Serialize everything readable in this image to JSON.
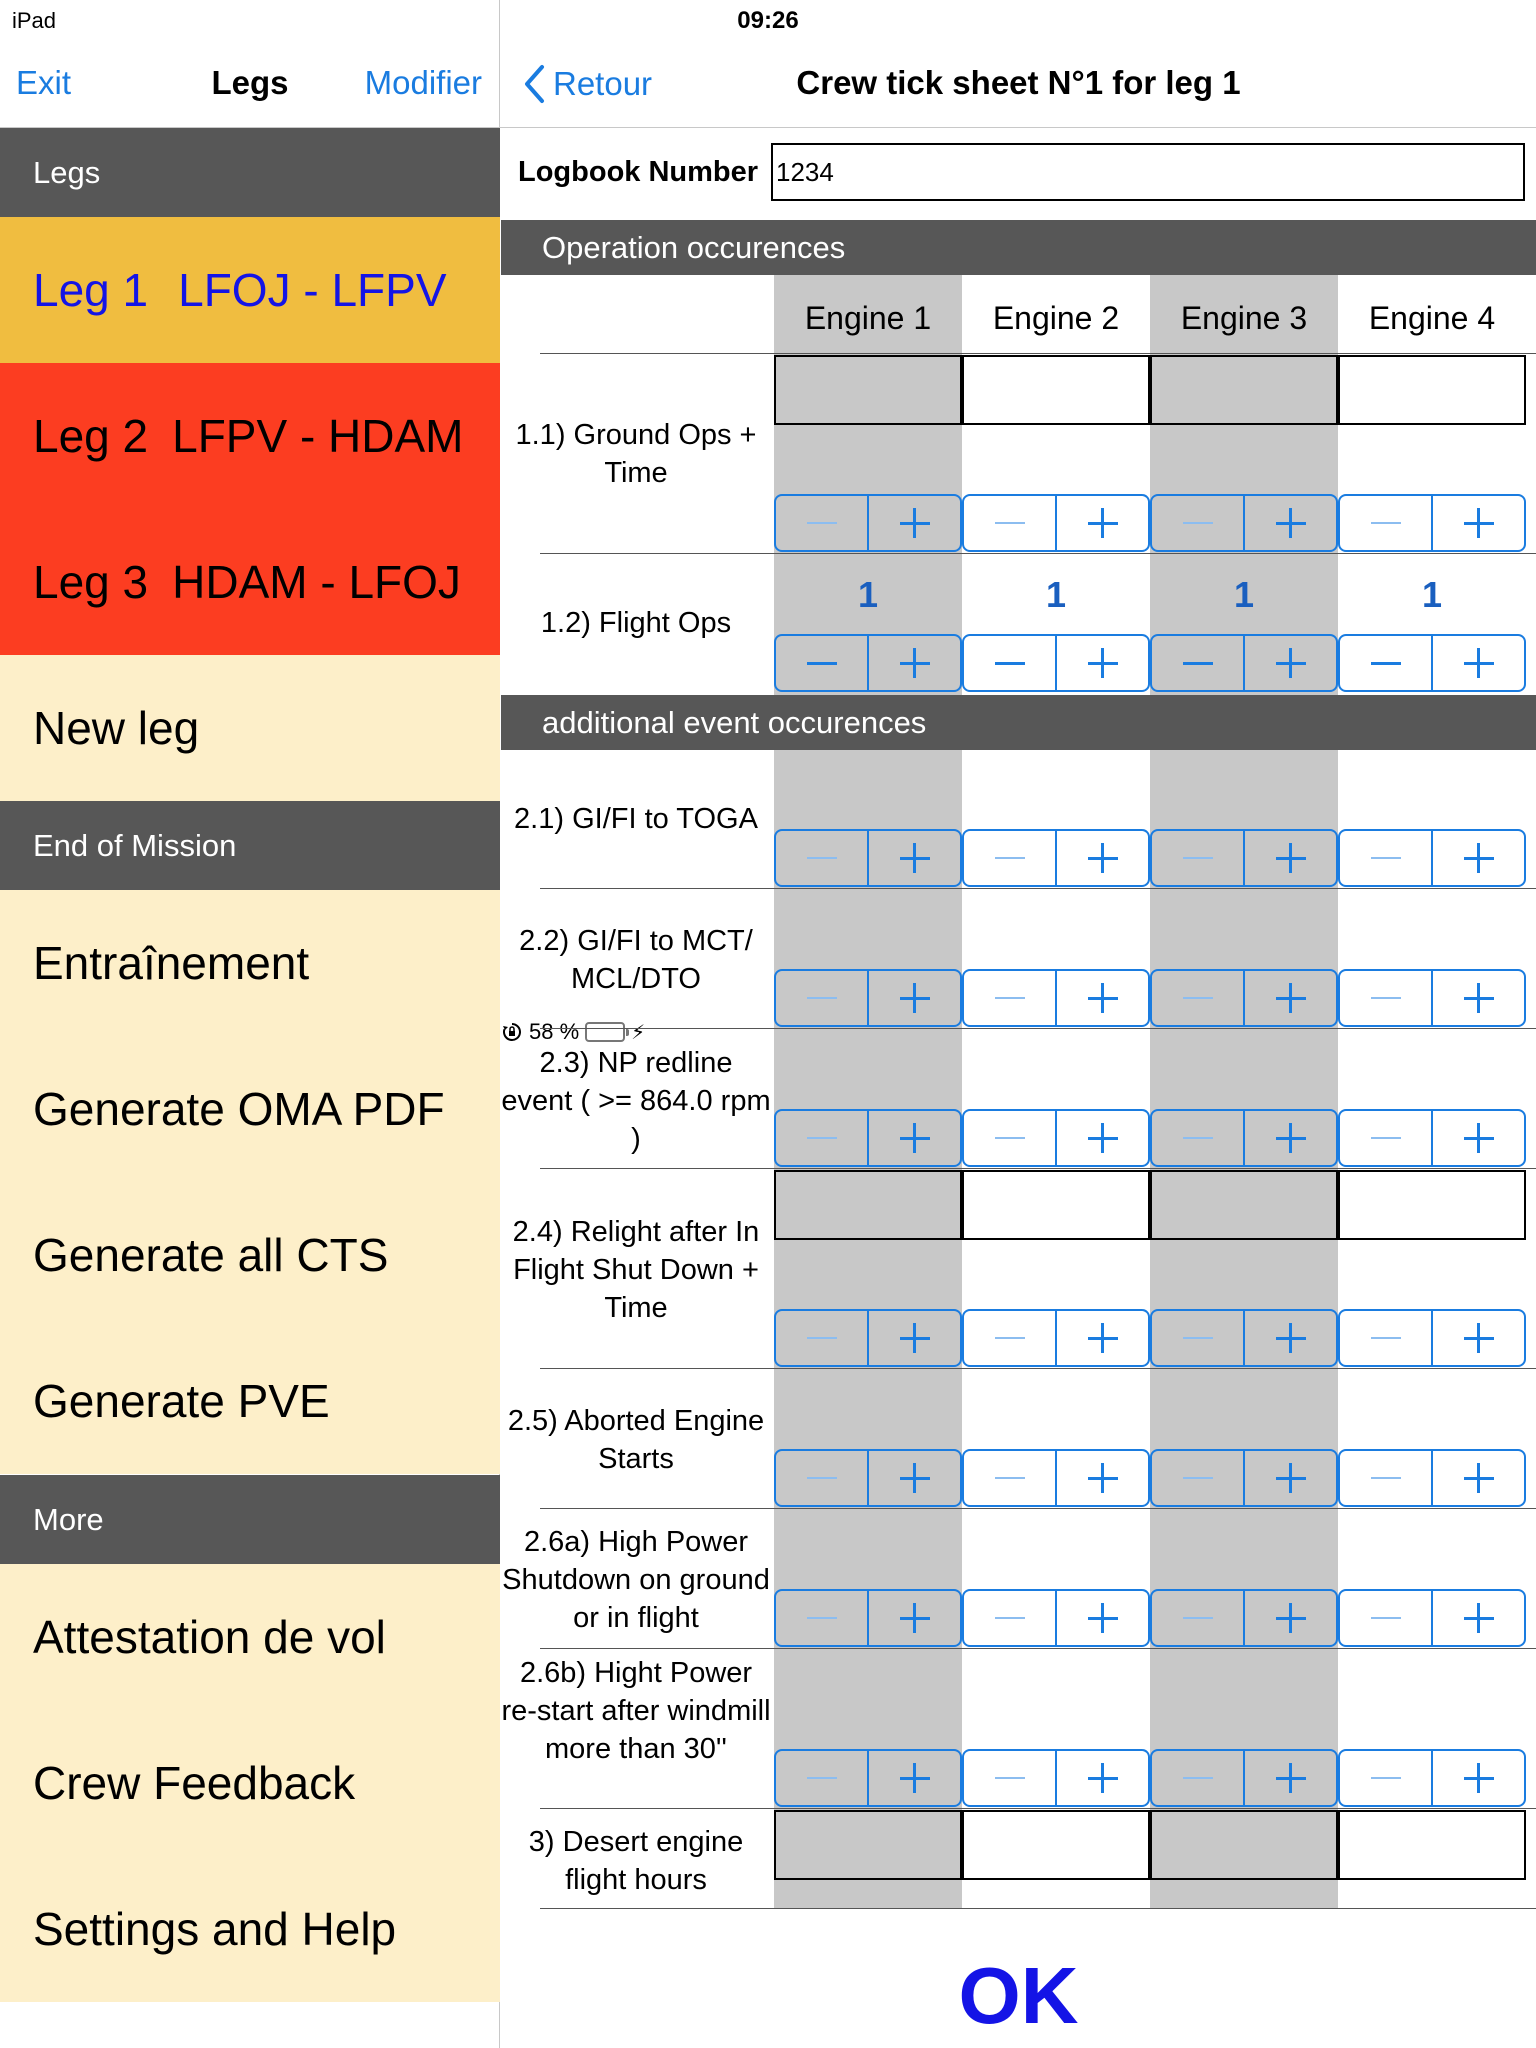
{
  "status": {
    "device": "iPad",
    "time": "09:26",
    "battery": "58 %",
    "battery_level": 0.58,
    "battery_color": "#4cd964"
  },
  "left_nav": {
    "exit": "Exit",
    "title": "Legs",
    "edit": "Modifier"
  },
  "sidebar": {
    "legs_header": "Legs",
    "legs": [
      {
        "label": "Leg 1",
        "route": "LFOJ - LFPV",
        "color": "#f0bd40"
      },
      {
        "label": "Leg 2",
        "route": "LFPV - HDAM",
        "color": "#fc3d21"
      },
      {
        "label": "Leg 3",
        "route": "HDAM - LFOJ",
        "color": "#fc3d21"
      }
    ],
    "new_leg": "New leg",
    "end_header": "End of Mission",
    "end_items": [
      "Entraînement",
      "Generate OMA PDF",
      "Generate all CTS",
      "Generate PVE"
    ],
    "more_header": "More",
    "more_items": [
      "Attestation de vol",
      "Crew Feedback",
      "Settings and Help"
    ]
  },
  "right_nav": {
    "back": "Retour",
    "title": "Crew tick sheet N°1 for leg 1"
  },
  "logbook": {
    "label": "Logbook Number",
    "value": "1234"
  },
  "sections": {
    "operation": "Operation occurences",
    "additional": "additional event occurences"
  },
  "engines": [
    "Engine 1",
    "Engine 2",
    "Engine 3",
    "Engine 4"
  ],
  "rows": {
    "r1_1": "1.1) Ground Ops + Time",
    "r1_2": "1.2) Flight Ops",
    "r2_1": "2.1) GI/FI to TOGA",
    "r2_2": "2.2) GI/FI to MCT/ MCL/DTO",
    "r2_3": "2.3) NP redline event ( >= 864.0 rpm )",
    "r2_4": "2.4) Relight after In Flight Shut Down + Time",
    "r2_5": "2.5) Aborted Engine Starts",
    "r2_6a": "2.6a) High Power Shutdown on ground or in flight",
    "r2_6b": "2.6b) Hight Power re-start after windmill more than 30''",
    "r3": "3) Desert engine flight hours"
  },
  "flight_ops_values": [
    "1",
    "1",
    "1",
    "1"
  ],
  "ok": "OK"
}
